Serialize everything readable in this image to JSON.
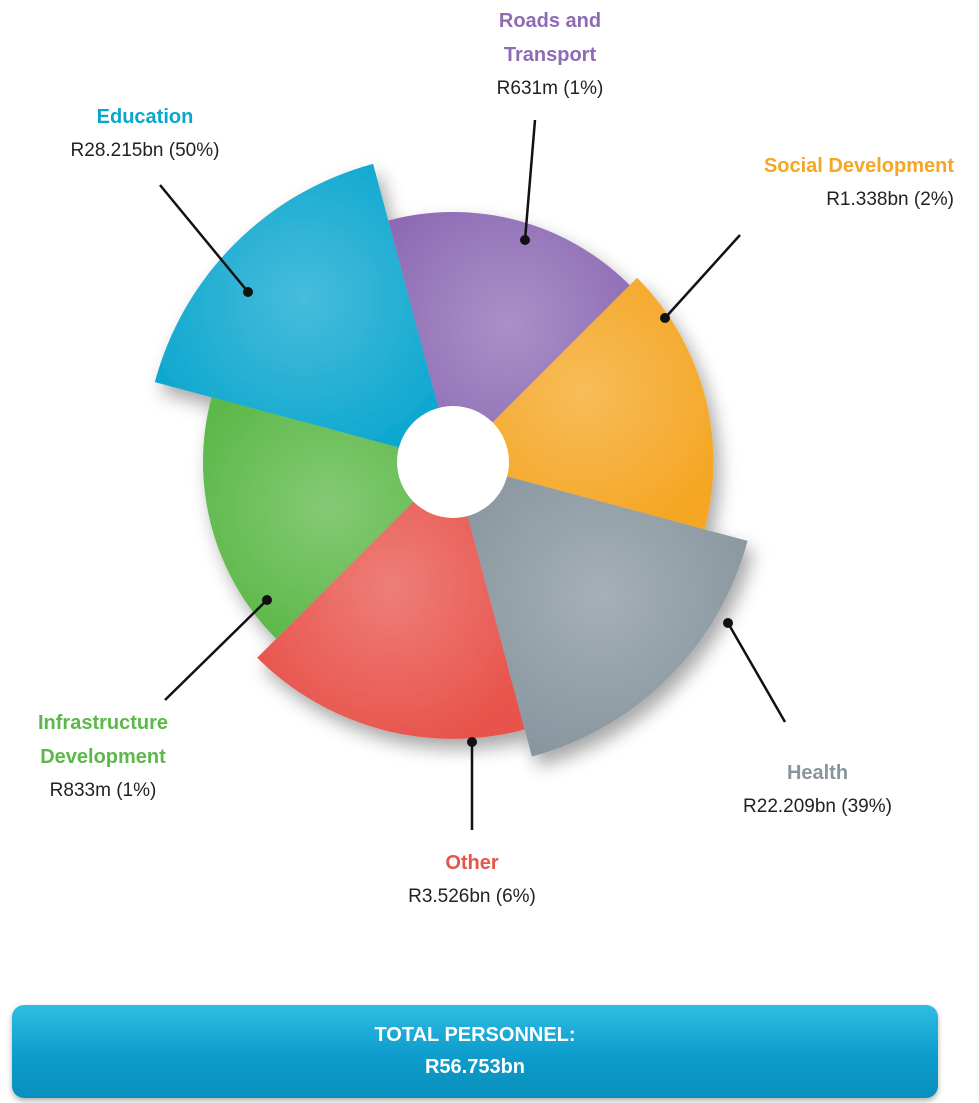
{
  "chart_data": {
    "type": "pie",
    "categories": [
      "Education",
      "Roads and Transport",
      "Social Development",
      "Health",
      "Other",
      "Infrastructure Development"
    ],
    "values": [
      50,
      1,
      2,
      39,
      6,
      1
    ],
    "value_labels": [
      "R28.215bn (50%)",
      "R631m (1%)",
      "R1.338bn (2%)",
      "R22.209bn (39%)",
      "R3.526bn (6%)",
      "R833m (1%)"
    ],
    "colors": [
      "#0aa6cf",
      "#8e6bb5",
      "#f5a623",
      "#87959e",
      "#e8534b",
      "#5cb848"
    ],
    "total_label": "TOTAL PERSONNEL:",
    "total_value_label": "R56.753bn"
  }
}
